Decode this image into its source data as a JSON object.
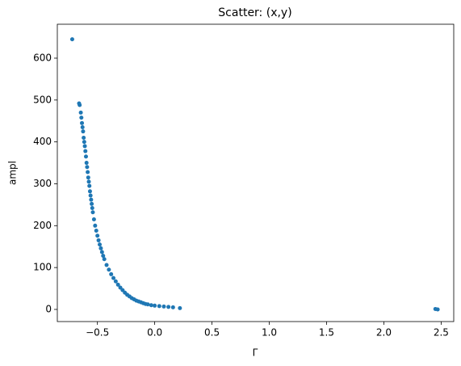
{
  "chart_data": {
    "type": "scatter",
    "title": "Scatter: (x,y)",
    "x_label": "Γ",
    "y_label": "ampl",
    "color": "#1f77b4",
    "xlim": [
      -0.85,
      2.61
    ],
    "ylim": [
      -29,
      681
    ],
    "xticks": [
      {
        "value": -0.5,
        "label": "−0.5"
      },
      {
        "value": 0,
        "label": "0.0"
      },
      {
        "value": 0.5,
        "label": "0.5"
      },
      {
        "value": 1,
        "label": "1.0"
      },
      {
        "value": 1.5,
        "label": "1.5"
      },
      {
        "value": 2,
        "label": "2.0"
      },
      {
        "value": 2.5,
        "label": "2.5"
      }
    ],
    "yticks": [
      0,
      100,
      200,
      300,
      400,
      500,
      600
    ],
    "x": [
      -0.72,
      -0.66,
      -0.655,
      -0.645,
      -0.64,
      -0.635,
      -0.63,
      -0.625,
      -0.62,
      -0.615,
      -0.61,
      -0.605,
      -0.6,
      -0.595,
      -0.59,
      -0.585,
      -0.58,
      -0.575,
      -0.57,
      -0.565,
      -0.56,
      -0.555,
      -0.55,
      -0.545,
      -0.54,
      -0.53,
      -0.52,
      -0.51,
      -0.5,
      -0.49,
      -0.48,
      -0.47,
      -0.46,
      -0.45,
      -0.44,
      -0.42,
      -0.4,
      -0.38,
      -0.36,
      -0.34,
      -0.32,
      -0.3,
      -0.28,
      -0.26,
      -0.24,
      -0.22,
      -0.2,
      -0.18,
      -0.16,
      -0.14,
      -0.12,
      -0.1,
      -0.08,
      -0.06,
      -0.03,
      0.0,
      0.04,
      0.08,
      0.12,
      0.16,
      0.22,
      2.45,
      2.47
    ],
    "y": [
      645,
      492,
      488,
      470,
      458,
      445,
      435,
      425,
      410,
      400,
      390,
      378,
      365,
      350,
      340,
      328,
      315,
      305,
      295,
      282,
      272,
      262,
      252,
      242,
      232,
      215,
      200,
      188,
      176,
      165,
      155,
      146,
      137,
      128,
      120,
      106,
      95,
      84,
      75,
      67,
      59,
      52,
      46,
      40,
      35,
      31,
      27,
      24,
      21,
      19,
      17,
      15,
      13,
      12,
      10,
      9,
      8,
      7,
      6,
      5,
      3,
      1,
      0
    ]
  }
}
